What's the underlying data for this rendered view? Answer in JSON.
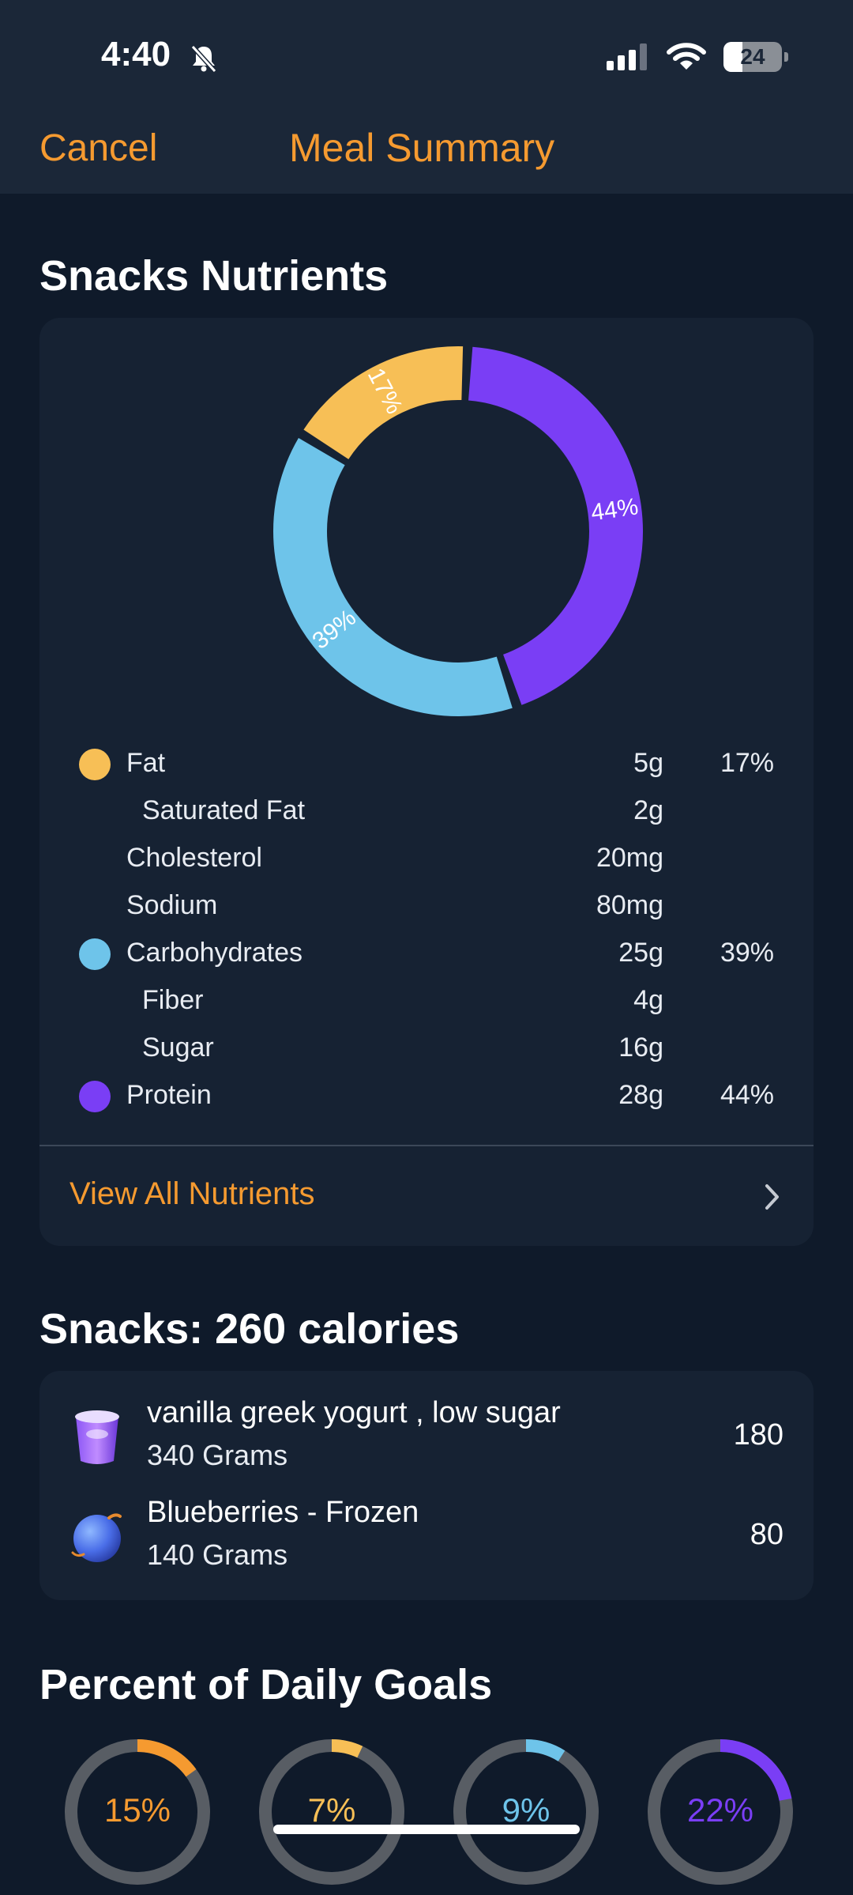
{
  "status": {
    "time": "4:40",
    "battery": "24"
  },
  "nav": {
    "cancel": "Cancel",
    "title": "Meal Summary"
  },
  "nutrients_section": {
    "title": "Snacks Nutrients",
    "chart_segments": [
      {
        "name": "Protein",
        "percent_label": "44%",
        "value": 44,
        "color": "#7a3ef5"
      },
      {
        "name": "Carbohydrates",
        "percent_label": "39%",
        "value": 39,
        "color": "#6ec4ea"
      },
      {
        "name": "Fat",
        "percent_label": "17%",
        "value": 17,
        "color": "#f7bf56"
      }
    ],
    "rows": [
      {
        "label": "Fat",
        "amount": "5g",
        "pct": "17%",
        "dot_color": "#f7bf56",
        "indent": false
      },
      {
        "label": "Saturated Fat",
        "amount": "2g",
        "pct": "",
        "dot_color": "",
        "indent": true
      },
      {
        "label": "Cholesterol",
        "amount": "20mg",
        "pct": "",
        "dot_color": "",
        "indent": false
      },
      {
        "label": "Sodium",
        "amount": "80mg",
        "pct": "",
        "dot_color": "",
        "indent": false
      },
      {
        "label": "Carbohydrates",
        "amount": "25g",
        "pct": "39%",
        "dot_color": "#6ec4ea",
        "indent": false
      },
      {
        "label": "Fiber",
        "amount": "4g",
        "pct": "",
        "dot_color": "",
        "indent": true
      },
      {
        "label": "Sugar",
        "amount": "16g",
        "pct": "",
        "dot_color": "",
        "indent": true
      },
      {
        "label": "Protein",
        "amount": "28g",
        "pct": "44%",
        "dot_color": "#7a3ef5",
        "indent": false
      }
    ],
    "view_all": "View All Nutrients"
  },
  "snacks_section": {
    "title": "Snacks: 260 calories",
    "items": [
      {
        "name": "vanilla greek yogurt , low sugar",
        "amount": "340 Grams",
        "calories": "180",
        "icon": "yogurt-icon"
      },
      {
        "name": "Blueberries - Frozen",
        "amount": "140 Grams",
        "calories": "80",
        "icon": "blueberry-icon"
      }
    ]
  },
  "goals_section": {
    "title": "Percent of Daily Goals",
    "goals": [
      {
        "label": "15%",
        "value": 15,
        "color": "#f59a30"
      },
      {
        "label": "7%",
        "value": 7,
        "color": "#f7bf56"
      },
      {
        "label": "9%",
        "value": 9,
        "color": "#6ec4ea"
      },
      {
        "label": "22%",
        "value": 22,
        "color": "#7a3ef5"
      }
    ]
  },
  "colors": {
    "accent": "#f59a30",
    "background": "#0f1a2a",
    "card": "#162233",
    "header": "#1b2738",
    "ring_track": "#585d64"
  }
}
